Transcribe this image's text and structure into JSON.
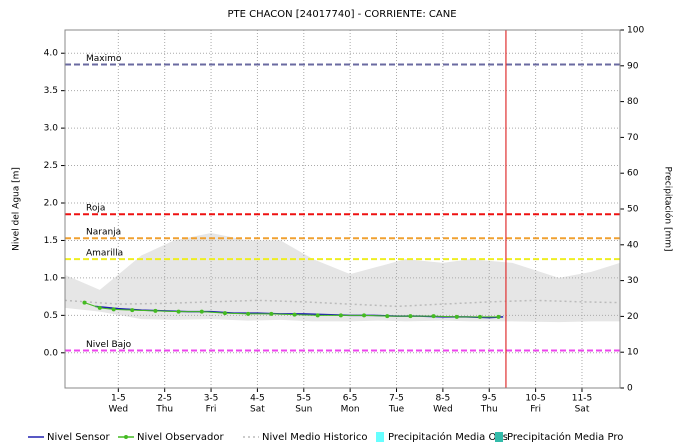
{
  "chart_data": {
    "type": "line",
    "title": "PTE CHACON [24017740] - CORRIENTE: CANE",
    "y_label": "Nivel del Agua [m]",
    "y2_label": "Precipitación [mm]",
    "xlim": [
      -0.15,
      11.82
    ],
    "xticks": [
      {
        "value": 1,
        "label": "1-5"
      },
      {
        "value": 2,
        "label": "2-5"
      },
      {
        "value": 3,
        "label": "3-5"
      },
      {
        "value": 4,
        "label": "4-5"
      },
      {
        "value": 5,
        "label": "5-5"
      },
      {
        "value": 6,
        "label": "6-5"
      },
      {
        "value": 7,
        "label": "7-5"
      },
      {
        "value": 8,
        "label": "8-5"
      },
      {
        "value": 9,
        "label": "9-5"
      },
      {
        "value": 10,
        "label": "10-5"
      },
      {
        "value": 11,
        "label": "11-5"
      }
    ],
    "xtick_days": [
      "Wed",
      "Thu",
      "Fri",
      "Sat",
      "Sun",
      "Mon",
      "Tue",
      "Wed",
      "Thu",
      "Fri",
      "Sat"
    ],
    "ylim": [
      -0.47,
      4.31
    ],
    "yticks": [
      {
        "value": 0,
        "label": "0.0"
      },
      {
        "value": 0.5,
        "label": "0.5"
      },
      {
        "value": 1,
        "label": "1.0"
      },
      {
        "value": 1.5,
        "label": "1.5"
      },
      {
        "value": 2,
        "label": "2.0"
      },
      {
        "value": 2.5,
        "label": "2.5"
      },
      {
        "value": 3,
        "label": "3.0"
      },
      {
        "value": 3.5,
        "label": "3.5"
      },
      {
        "value": 4,
        "label": "4.0"
      }
    ],
    "y2lim": [
      0,
      100
    ],
    "y2ticks": [
      0,
      10,
      20,
      30,
      40,
      50,
      60,
      70,
      80,
      90,
      100
    ],
    "grid": true,
    "now_line": {
      "x": 9.36,
      "color": "#e03030"
    },
    "thresholds": [
      {
        "name": "Maximo",
        "value": 3.85,
        "color": "#6a6aa0"
      },
      {
        "name": "Roja",
        "value": 1.85,
        "color": "#ee1111"
      },
      {
        "name": "Naranja",
        "value": 1.53,
        "color": "#f0a030"
      },
      {
        "name": "Amarilla",
        "value": 1.25,
        "color": "#eeee20"
      },
      {
        "name": "Nivel Bajo",
        "value": 0.03,
        "color": "#ee44ee"
      }
    ],
    "band": {
      "color": "#e6e6e6",
      "x": [
        -0.15,
        0.6,
        1.5,
        2.2,
        3,
        3.8,
        4.5,
        5.2,
        6,
        6.6,
        7.2,
        8,
        8.6,
        9.5,
        10.5,
        11.2,
        11.82
      ],
      "upper": [
        1.04,
        0.84,
        1.3,
        1.5,
        1.6,
        1.5,
        1.5,
        1.25,
        1.05,
        1.15,
        1.25,
        1.2,
        1.25,
        1.2,
        1.0,
        1.08,
        1.2
      ],
      "lower": [
        0.6,
        0.55,
        0.45,
        0.44,
        0.45,
        0.43,
        0.44,
        0.42,
        0.42,
        0.43,
        0.42,
        0.43,
        0.42,
        0.42,
        0.41,
        0.42,
        0.42
      ]
    },
    "series": [
      {
        "name": "Nivel Sensor",
        "color": "#2020b0",
        "style": "solid",
        "x": [
          0.5,
          1,
          1.5,
          2,
          2.5,
          3,
          3.5,
          4,
          4.5,
          5,
          5.5,
          6,
          6.5,
          7,
          7.5,
          8,
          8.5,
          9,
          9.3
        ],
        "values": [
          0.62,
          0.59,
          0.57,
          0.56,
          0.55,
          0.55,
          0.53,
          0.53,
          0.52,
          0.52,
          0.51,
          0.5,
          0.5,
          0.49,
          0.49,
          0.48,
          0.48,
          0.47,
          0.48
        ]
      },
      {
        "name": "Nivel Observador",
        "color": "#44bb22",
        "style": "points",
        "x": [
          0.27,
          0.6,
          0.9,
          1.3,
          1.8,
          2.3,
          2.8,
          3.3,
          3.8,
          4.3,
          4.8,
          5.3,
          5.8,
          6.3,
          6.8,
          7.3,
          7.8,
          8.3,
          8.8,
          9.2
        ],
        "values": [
          0.67,
          0.6,
          0.58,
          0.57,
          0.56,
          0.55,
          0.55,
          0.53,
          0.52,
          0.52,
          0.51,
          0.5,
          0.5,
          0.5,
          0.49,
          0.49,
          0.49,
          0.48,
          0.48,
          0.48
        ]
      },
      {
        "name": "Nivel Medio Historico",
        "color": "#bbbbbb",
        "style": "dotted",
        "x": [
          -0.15,
          1,
          2,
          3,
          4,
          5,
          6,
          7,
          8,
          9,
          10,
          11,
          11.82
        ],
        "values": [
          0.7,
          0.65,
          0.66,
          0.68,
          0.7,
          0.68,
          0.65,
          0.62,
          0.65,
          0.68,
          0.7,
          0.68,
          0.67
        ]
      },
      {
        "name": "Precipitación Media Obs",
        "color": "#66ffff",
        "style": "bar",
        "x": [],
        "values": []
      },
      {
        "name": "Precipitación Media Pro",
        "color": "#33bbaa",
        "style": "bar",
        "x": [],
        "values": []
      }
    ]
  }
}
